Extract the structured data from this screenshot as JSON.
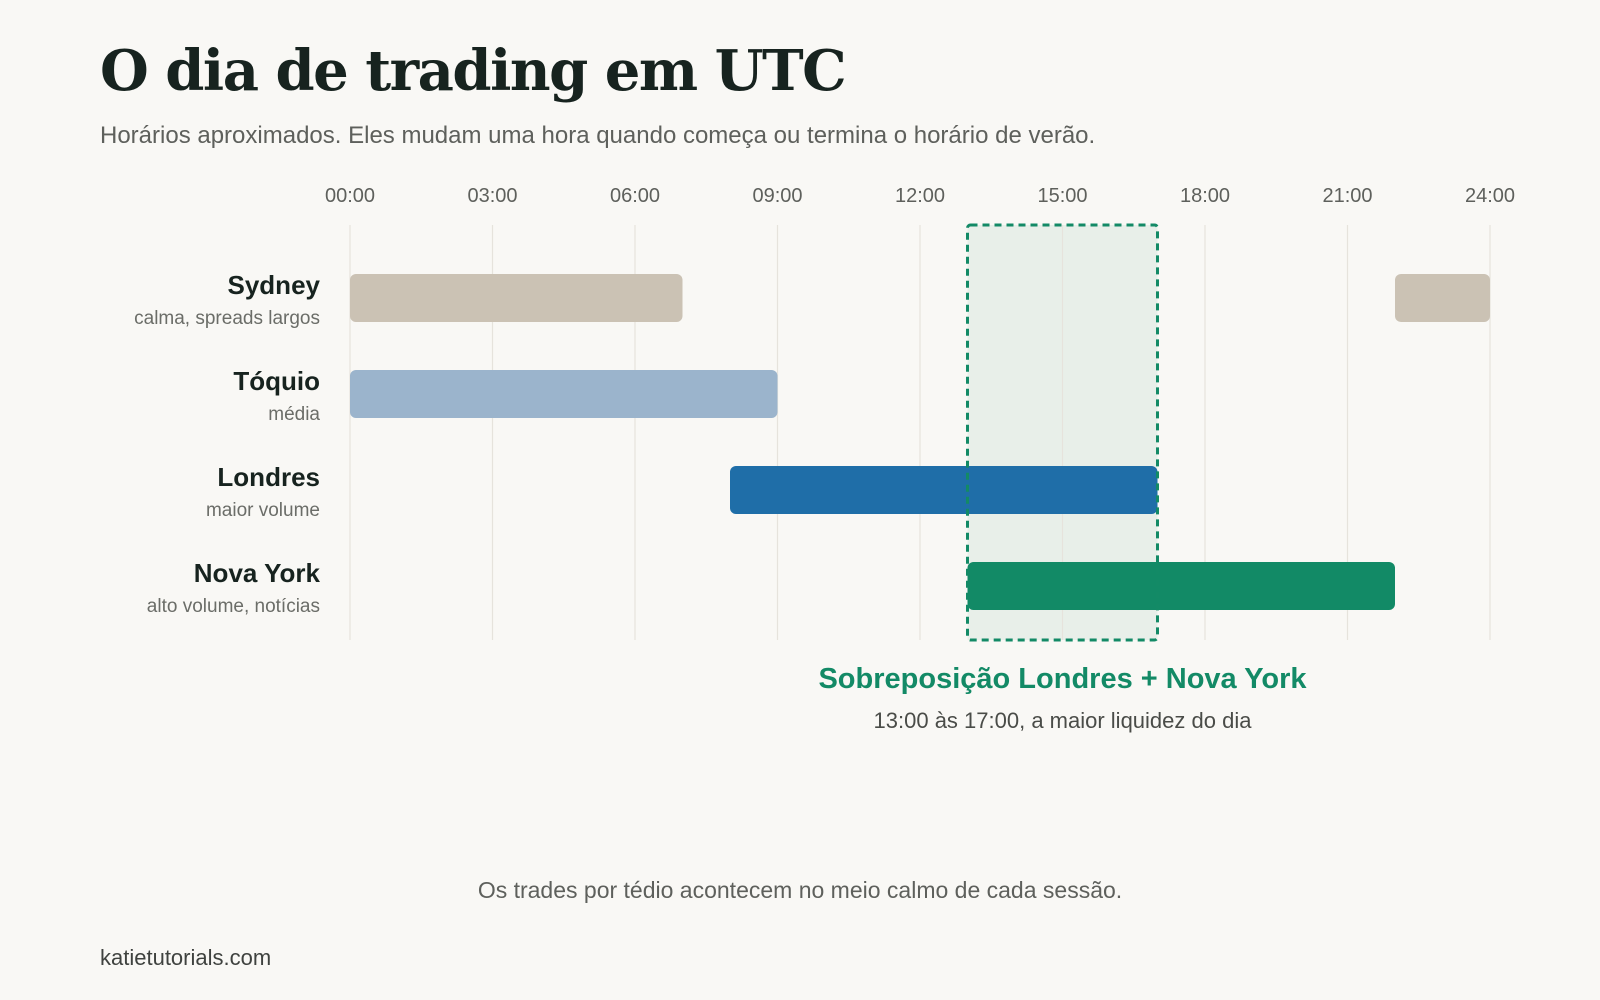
{
  "header": {
    "title": "O dia de trading em UTC",
    "subtitle": "Horários aproximados. Eles mudam uma hora quando começa ou termina o horário de verão."
  },
  "chart_data": {
    "type": "timeline",
    "title": "O dia de trading em UTC",
    "subtitle": "Horários aproximados. Eles mudam uma hora quando começa ou termina o horário de verão.",
    "x_unit": "hours UTC",
    "xlim": [
      0,
      24
    ],
    "ticks": [
      {
        "value": 0,
        "label": "00:00"
      },
      {
        "value": 3,
        "label": "03:00"
      },
      {
        "value": 6,
        "label": "06:00"
      },
      {
        "value": 9,
        "label": "09:00"
      },
      {
        "value": 12,
        "label": "12:00"
      },
      {
        "value": 15,
        "label": "15:00"
      },
      {
        "value": 18,
        "label": "18:00"
      },
      {
        "value": 21,
        "label": "21:00"
      },
      {
        "value": 24,
        "label": "24:00"
      }
    ],
    "grid": true,
    "sessions": [
      {
        "name": "Sydney",
        "note": "calma, spreads largos",
        "color": "#cbc2b4",
        "intervals": [
          [
            0,
            7
          ],
          [
            22,
            24
          ]
        ]
      },
      {
        "name": "Tóquio",
        "note": "média",
        "color": "#9bb4cc",
        "intervals": [
          [
            0,
            9
          ]
        ]
      },
      {
        "name": "Londres",
        "note": "maior volume",
        "color": "#1f6ea8",
        "intervals": [
          [
            8,
            17
          ]
        ]
      },
      {
        "name": "Nova York",
        "note": "alto volume, notícias",
        "color": "#128a66",
        "intervals": [
          [
            13,
            22
          ]
        ]
      }
    ],
    "overlap": {
      "start": 13,
      "end": 17,
      "color": "#138a66",
      "label": "Sobreposição Londres + Nova York",
      "sublabel": "13:00 às 17:00, a maior liquidez do dia"
    }
  },
  "footnote": "Os trades por tédio acontecem no meio calmo de cada sessão.",
  "credit": "katietutorials.com"
}
